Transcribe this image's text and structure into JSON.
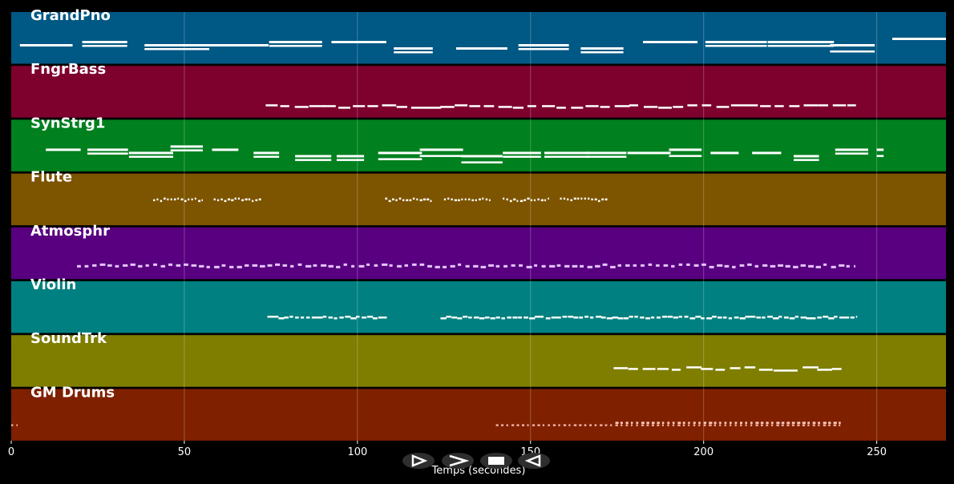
{
  "chart_data": {
    "type": "piano-roll",
    "xlabel": "Temps (secondes)",
    "xlim": [
      0,
      270
    ],
    "xticks": [
      0,
      50,
      100,
      150,
      200,
      250
    ],
    "grid": true,
    "tracks": [
      {
        "name": "GrandPno",
        "color": "#005884",
        "start": 2.5,
        "end": 270,
        "density": 18,
        "style": "dense"
      },
      {
        "name": "FngrBass",
        "color": "#7d002d",
        "start": 73.5,
        "end": 244,
        "density": 4.2,
        "style": "line"
      },
      {
        "name": "SynStrg1",
        "color": "#00801e",
        "start": 10,
        "end": 252,
        "density": 12,
        "style": "dense"
      },
      {
        "name": "Flute",
        "color": "#7d5400",
        "segments": [
          [
            41,
            55.5
          ],
          [
            58.5,
            72.5
          ],
          [
            108,
            122
          ],
          [
            125,
            139
          ],
          [
            142,
            155.5
          ],
          [
            158.5,
            172.5
          ]
        ],
        "density": 1.0,
        "style": "dots"
      },
      {
        "name": "Atmosphr",
        "color": "#580080",
        "start": 19,
        "end": 244,
        "density": 2.2,
        "style": "dots"
      },
      {
        "name": "Violin",
        "color": "#008080",
        "segments": [
          [
            74,
            108.5
          ],
          [
            124,
            244
          ]
        ],
        "density": 1.6,
        "style": "line"
      },
      {
        "name": "SoundTrk",
        "color": "#7f7e00",
        "start": 174,
        "end": 240,
        "density": 4.2,
        "style": "line"
      },
      {
        "name": "GM Drums",
        "color": "#7f2000",
        "segments": [
          [
            0,
            2
          ],
          [
            140,
            240
          ]
        ],
        "density": 1.5,
        "style": "drums"
      }
    ]
  },
  "controls": [
    {
      "name": "play-icon",
      "symbol": "play"
    },
    {
      "name": "forward-icon",
      "symbol": "forward"
    },
    {
      "name": "stop-icon",
      "symbol": "stop"
    },
    {
      "name": "rewind-icon",
      "symbol": "rewind"
    }
  ]
}
